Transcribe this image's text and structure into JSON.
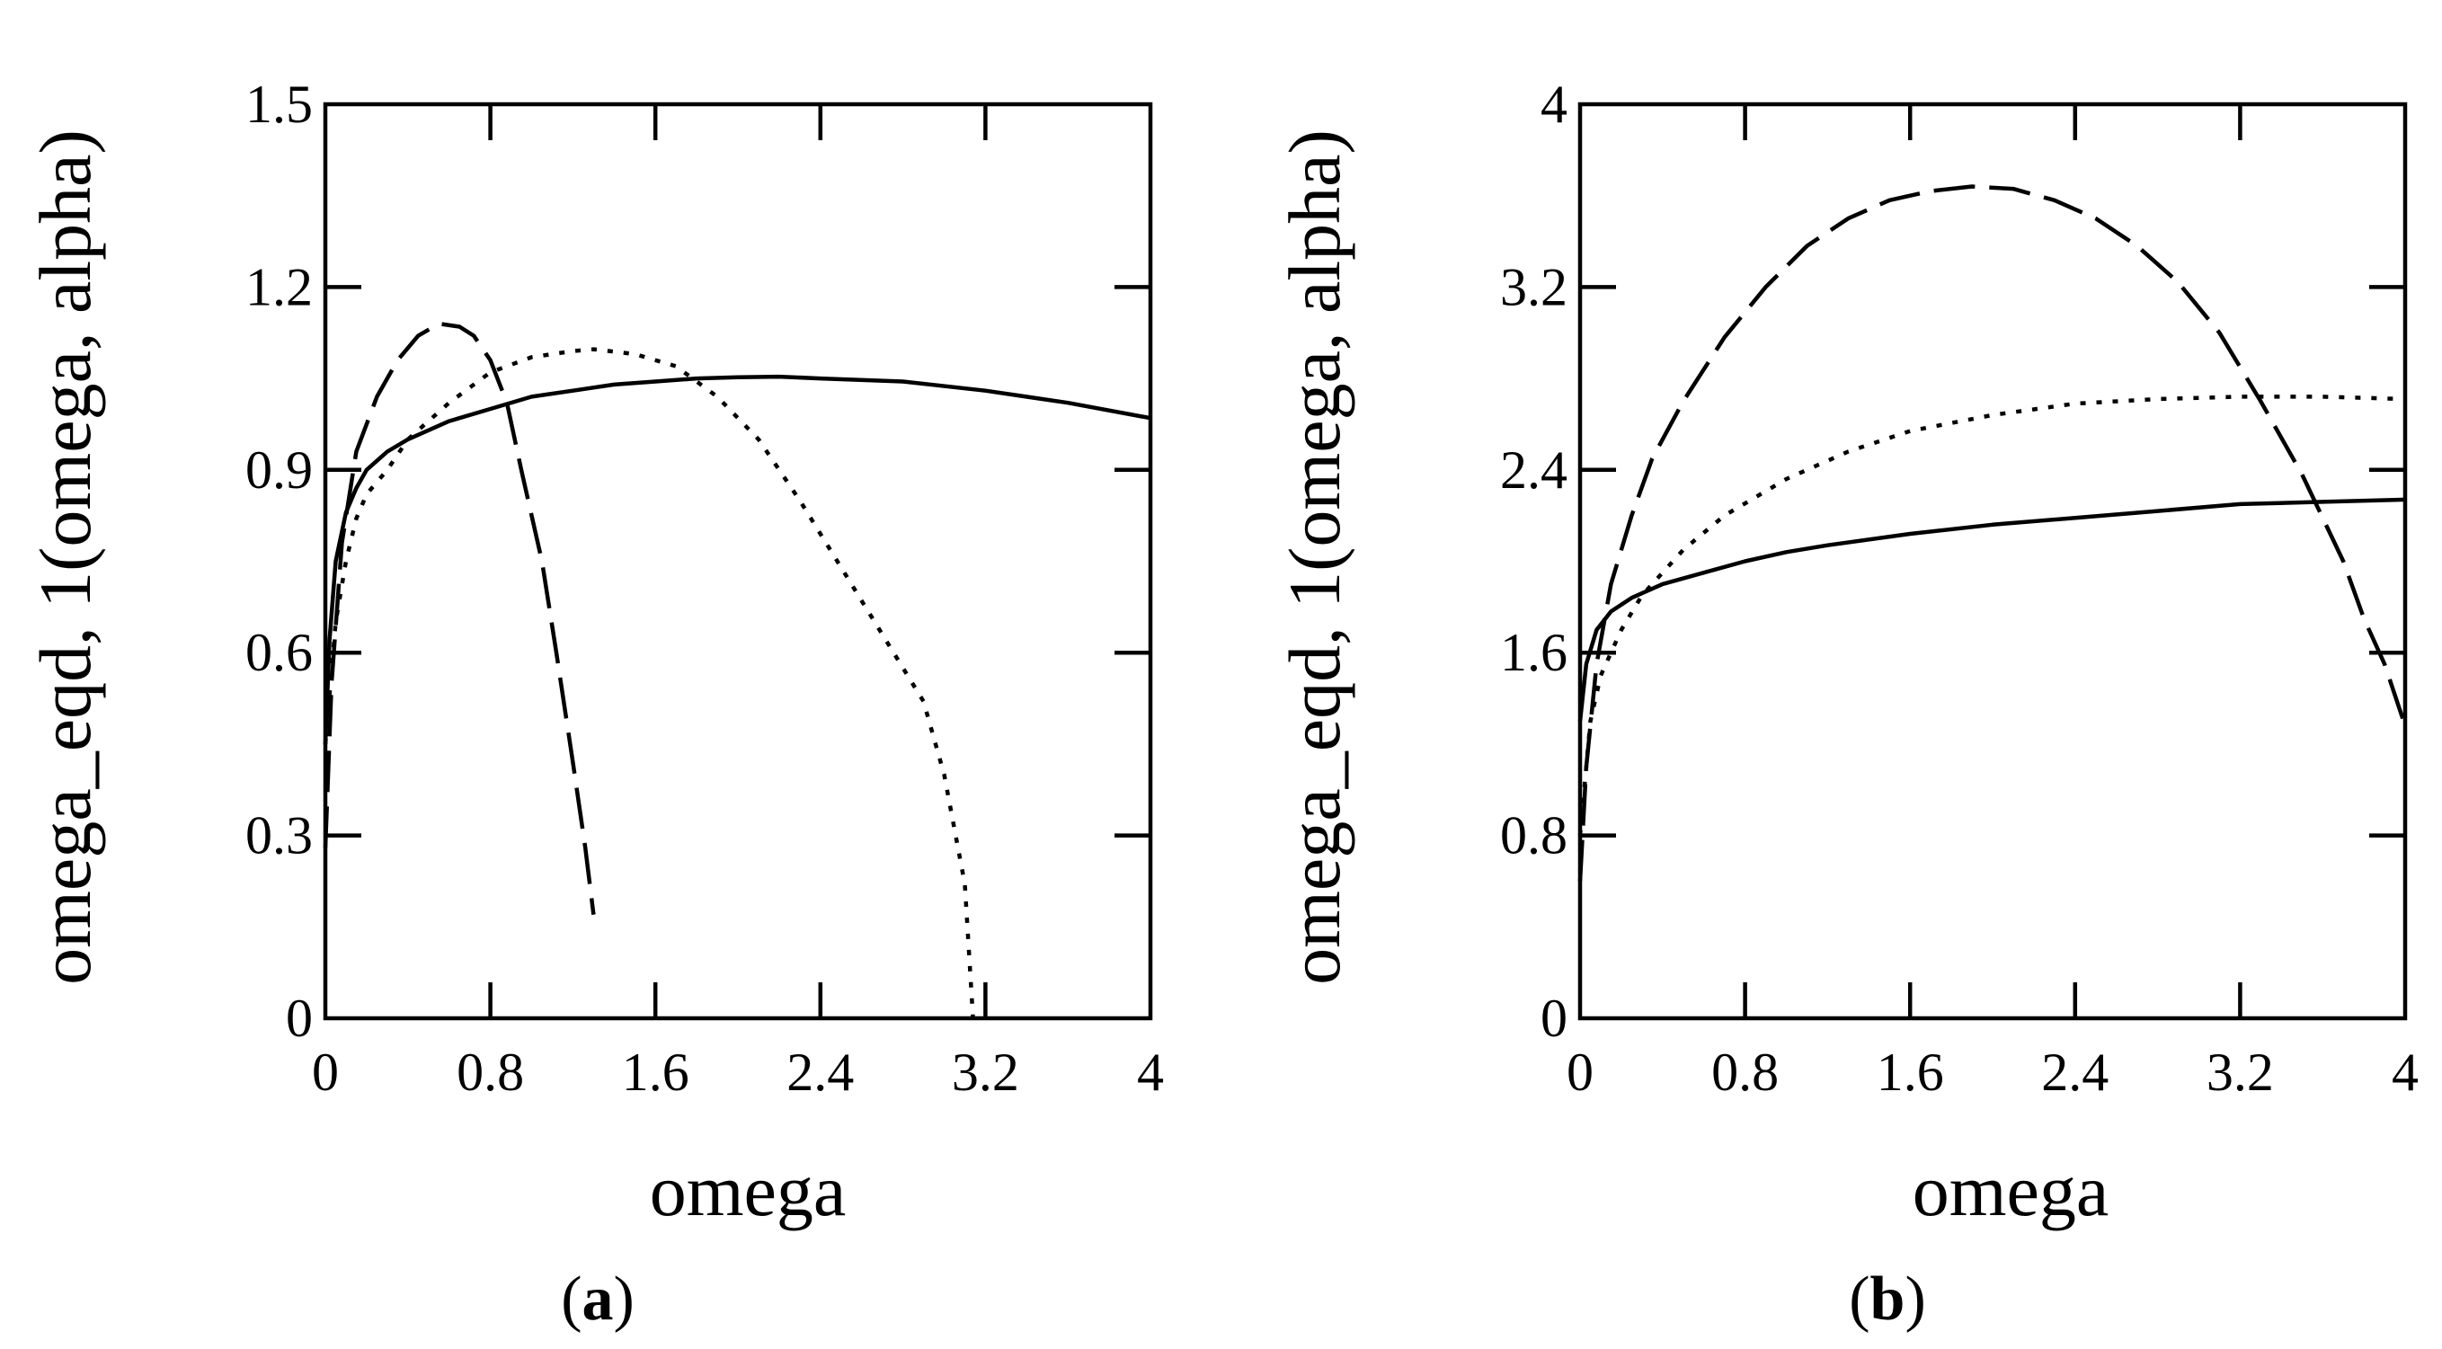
{
  "chart_data": [
    {
      "type": "line",
      "panel": "a",
      "caption": {
        "open": "(",
        "letter": "a",
        "close": ")"
      },
      "xlabel": "omega",
      "ylabel": "omega_eqd, 1(omega, alpha)",
      "xlim": [
        0,
        4
      ],
      "ylim": [
        0,
        1.5
      ],
      "xticks": [
        0,
        0.8,
        1.6,
        2.4,
        3.2,
        4
      ],
      "yticks": [
        0,
        0.3,
        0.6,
        0.9,
        1.2,
        1.5
      ],
      "xtick_labels": [
        "0",
        "0.8",
        "1.6",
        "2.4",
        "3.2",
        "4"
      ],
      "ytick_labels": [
        "0",
        "0.3",
        "0.6",
        "0.9",
        "1.2",
        "1.5"
      ],
      "series": [
        {
          "name": "solid",
          "style": "solid",
          "x": [
            0.0,
            0.02,
            0.05,
            0.1,
            0.15,
            0.2,
            0.3,
            0.4,
            0.6,
            0.8,
            1.0,
            1.2,
            1.4,
            1.6,
            1.8,
            2.0,
            2.2,
            2.4,
            2.8,
            3.2,
            3.6,
            4.0
          ],
          "y": [
            0.45,
            0.62,
            0.75,
            0.83,
            0.87,
            0.9,
            0.93,
            0.95,
            0.98,
            1.0,
            1.02,
            1.03,
            1.04,
            1.045,
            1.05,
            1.052,
            1.053,
            1.05,
            1.045,
            1.03,
            1.01,
            0.985
          ]
        },
        {
          "name": "dotted",
          "style": "dotted",
          "x": [
            0.0,
            0.05,
            0.1,
            0.15,
            0.2,
            0.3,
            0.4,
            0.6,
            0.8,
            1.0,
            1.2,
            1.3,
            1.5,
            1.7,
            1.9,
            2.1,
            2.3,
            2.5,
            2.7,
            2.9,
            3.0,
            3.1,
            3.14
          ],
          "y": [
            0.45,
            0.65,
            0.75,
            0.82,
            0.86,
            0.9,
            0.95,
            1.01,
            1.06,
            1.085,
            1.095,
            1.098,
            1.09,
            1.07,
            1.02,
            0.95,
            0.85,
            0.74,
            0.63,
            0.52,
            0.4,
            0.22,
            0.0
          ]
        },
        {
          "name": "dashed",
          "style": "dashed",
          "x": [
            0.0,
            0.03,
            0.08,
            0.15,
            0.25,
            0.35,
            0.45,
            0.55,
            0.65,
            0.72,
            0.8,
            0.88,
            0.95,
            1.05,
            1.12,
            1.2,
            1.26,
            1.3
          ],
          "y": [
            0.28,
            0.55,
            0.78,
            0.93,
            1.02,
            1.08,
            1.12,
            1.14,
            1.135,
            1.12,
            1.08,
            1.01,
            0.9,
            0.75,
            0.6,
            0.42,
            0.28,
            0.17
          ]
        }
      ]
    },
    {
      "type": "line",
      "panel": "b",
      "caption": {
        "open": "(",
        "letter": "b",
        "close": ")"
      },
      "xlabel": "omega",
      "ylabel": "omega_eqd, 1(omega, alpha)",
      "xlim": [
        0,
        4
      ],
      "ylim": [
        0,
        4
      ],
      "xticks": [
        0,
        0.8,
        1.6,
        2.4,
        3.2,
        4
      ],
      "yticks": [
        0,
        0.8,
        1.6,
        2.4,
        3.2,
        4
      ],
      "xtick_labels": [
        "0",
        "0.8",
        "1.6",
        "2.4",
        "3.2",
        "4"
      ],
      "ytick_labels": [
        "0",
        "0.8",
        "1.6",
        "2.4",
        "3.2",
        "4"
      ],
      "series": [
        {
          "name": "solid",
          "style": "solid",
          "x": [
            0.0,
            0.03,
            0.08,
            0.15,
            0.25,
            0.4,
            0.6,
            0.8,
            1.0,
            1.2,
            1.6,
            2.0,
            2.4,
            2.8,
            3.2,
            3.6,
            4.0
          ],
          "y": [
            1.3,
            1.55,
            1.7,
            1.78,
            1.84,
            1.9,
            1.95,
            2.0,
            2.04,
            2.07,
            2.12,
            2.16,
            2.19,
            2.22,
            2.25,
            2.26,
            2.27
          ]
        },
        {
          "name": "dotted",
          "style": "dotted",
          "x": [
            0.0,
            0.05,
            0.1,
            0.2,
            0.3,
            0.5,
            0.7,
            1.0,
            1.3,
            1.6,
            2.0,
            2.4,
            2.8,
            3.2,
            3.6,
            4.0
          ],
          "y": [
            0.8,
            1.3,
            1.5,
            1.7,
            1.85,
            2.05,
            2.2,
            2.36,
            2.48,
            2.57,
            2.64,
            2.69,
            2.71,
            2.72,
            2.72,
            2.71
          ]
        },
        {
          "name": "dashed",
          "style": "dashed",
          "x": [
            0.0,
            0.03,
            0.08,
            0.15,
            0.25,
            0.35,
            0.5,
            0.7,
            0.9,
            1.1,
            1.3,
            1.5,
            1.7,
            1.9,
            2.1,
            2.3,
            2.5,
            2.7,
            2.9,
            3.1,
            3.3,
            3.5,
            3.7,
            3.8,
            3.9,
            4.0
          ],
          "y": [
            0.6,
            1.1,
            1.55,
            1.9,
            2.2,
            2.45,
            2.7,
            2.98,
            3.2,
            3.38,
            3.5,
            3.58,
            3.62,
            3.64,
            3.63,
            3.58,
            3.5,
            3.38,
            3.22,
            3.0,
            2.7,
            2.38,
            2.0,
            1.75,
            1.55,
            1.28
          ]
        }
      ]
    }
  ]
}
